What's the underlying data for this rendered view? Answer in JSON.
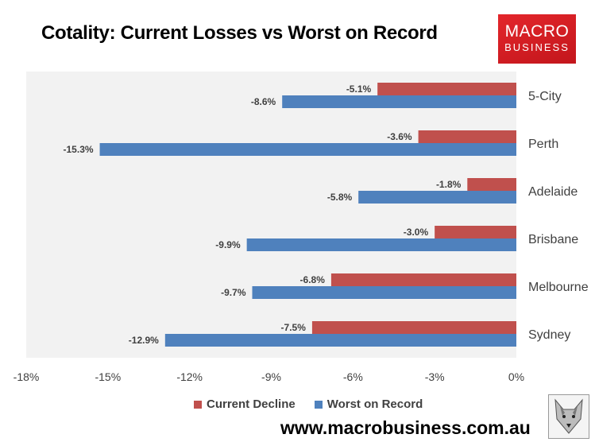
{
  "header": {
    "title": "Cotality: Current Losses vs Worst on Record"
  },
  "brand": {
    "logo_line1": "MACRO",
    "logo_line2": "BUSINESS",
    "logo_color": "#d81f26",
    "website": "www.macrobusiness.com.au",
    "mascot_icon": "wolf-icon"
  },
  "chart_data": {
    "type": "bar",
    "orientation": "horizontal",
    "title": "Cotality: Current Losses vs Worst on Record",
    "categories": [
      "5-City",
      "Perth",
      "Adelaide",
      "Brisbane",
      "Melbourne",
      "Sydney"
    ],
    "series": [
      {
        "name": "Current Decline",
        "color": "#c0504d",
        "values": [
          -5.1,
          -3.6,
          -1.8,
          -3.0,
          -6.8,
          -7.5
        ]
      },
      {
        "name": "Worst on Record",
        "color": "#4f81bd",
        "values": [
          -8.6,
          -15.3,
          -5.8,
          -9.9,
          -9.7,
          -12.9
        ]
      }
    ],
    "xlim": [
      -18,
      0
    ],
    "xticks": [
      -18,
      -15,
      -12,
      -9,
      -6,
      -3,
      0
    ],
    "tick_labels": [
      "-18%",
      "-15%",
      "-12%",
      "-9%",
      "-6%",
      "-3%",
      "0%"
    ],
    "data_labels": {
      "current": [
        "-5.1%",
        "-3.6%",
        "-1.8%",
        "-3.0%",
        "-6.8%",
        "-7.5%"
      ],
      "worst": [
        "-8.6%",
        "-15.3%",
        "-5.8%",
        "-9.9%",
        "-9.7%",
        "-12.9%"
      ]
    },
    "category_axis_side": "right",
    "legend_position": "bottom",
    "grid": false,
    "plot_background": "#f2f2f2"
  }
}
